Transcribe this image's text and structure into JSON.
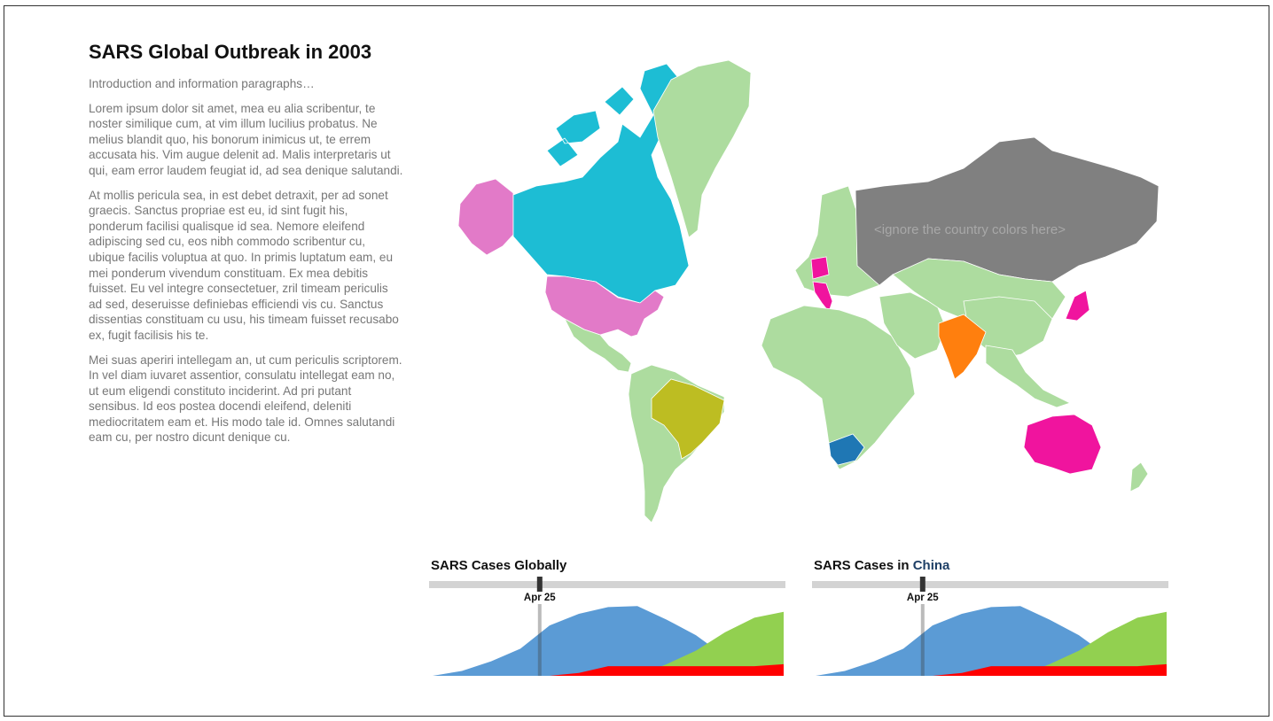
{
  "page": {
    "title": "SARS Global Outbreak in 2003",
    "lead": "Introduction and information paragraphs…",
    "paragraphs": [
      "Lorem ipsum dolor sit amet, mea eu alia scribentur, te noster similique cum, at vim illum lucilius probatus. Ne melius blandit quo, his bonorum inimicus ut, te errem accusata his. Vim augue delenit ad. Malis interpretaris ut qui, eam error laudem feugiat id, ad sea denique salutandi.",
      "At mollis pericula sea, in est debet detraxit, per ad sonet graecis. Sanctus propriae est eu, id sint fugit his, ponderum facilisi qualisque id sea. Nemore eleifend adipiscing sed cu, eos nibh commodo scribentur cu, ubique facilis voluptua at quo. In primis luptatum eam, eu mei ponderum vivendum constituam. Ex mea debitis fuisset. Eu vel integre consectetuer, zril timeam periculis ad sed, deseruisse definiebas efficiendi vis cu. Sanctus dissentias constituam cu usu, his timeam fuisset recusabo ex, fugit facilisis his te.",
      "Mei suas aperiri intellegam an, ut cum periculis scriptorem. In vel diam iuvaret assentior, consulatu intellegat eam no, ut eum eligendi constituto inciderint. Ad pri putant sensibus. Id eos postea docendi eleifend, deleniti mediocritatem eam et. His modo tale id. Omnes salutandi eam cu, per nostro dicunt denique cu."
    ]
  },
  "map": {
    "note": "<ignore the country colors here>",
    "colors": {
      "default": "#addc9f",
      "canada": "#1dbdd4",
      "usa_alaska": "#e27ac8",
      "russia": "#808080",
      "brazil": "#bdbd22",
      "india": "#ff7f0e",
      "australia_japan_germany": "#f0149e",
      "italy": "#f0149e",
      "south_africa": "#1f77b4"
    }
  },
  "charts": [
    {
      "title": "SARS Cases Globally",
      "title_prefix": "",
      "country": "",
      "slider_label": "Apr 25",
      "slider_position": 0.3
    },
    {
      "title": "SARS Cases in ",
      "title_prefix": "SARS Cases in ",
      "country": "China",
      "slider_label": "Apr 25",
      "slider_position": 0.3
    }
  ],
  "chart_data": {
    "type": "area",
    "series": [
      {
        "color": "#5b9bd5",
        "values": [
          0,
          0.05,
          0.15,
          0.28,
          0.52,
          0.64,
          0.71,
          0.72,
          0.58,
          0.42,
          0.2,
          0.05,
          0
        ]
      },
      {
        "color": "#92d050",
        "values": [
          0,
          0,
          0,
          0,
          0,
          0,
          0,
          0,
          0.12,
          0.26,
          0.45,
          0.6,
          0.66
        ]
      },
      {
        "color": "#ff0000",
        "values": [
          0,
          0,
          0,
          0,
          0,
          0.03,
          0.1,
          0.1,
          0.1,
          0.1,
          0.1,
          0.1,
          0.12
        ]
      }
    ],
    "ylim": [
      0,
      0.75
    ]
  }
}
